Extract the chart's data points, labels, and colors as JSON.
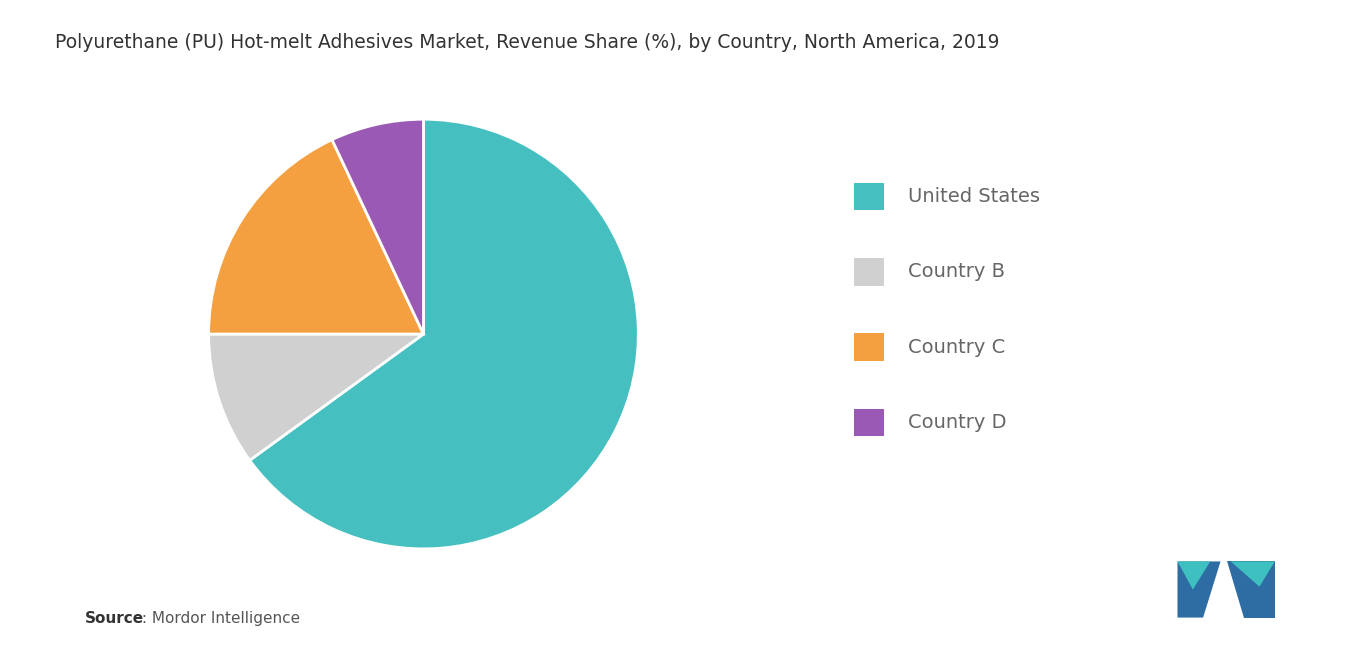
{
  "title": "Polyurethane (PU) Hot-melt Adhesives Market, Revenue Share (%), by Country, North America, 2019",
  "labels": [
    "United States",
    "Country B",
    "Country C",
    "Country D"
  ],
  "sizes": [
    65,
    10,
    18,
    7
  ],
  "colors": [
    "#45BFBF",
    "#d0d0d0",
    "#f5a040",
    "#9b59b6"
  ],
  "startangle": 90,
  "legend_labels": [
    "United States",
    "Country B",
    "Country C",
    "Country D"
  ],
  "source_bold": "Source",
  "source_rest": " : Mordor Intelligence",
  "background_color": "#ffffff",
  "title_fontsize": 13.5,
  "legend_fontsize": 14,
  "source_fontsize": 11,
  "logo_blue": "#2e6da4",
  "logo_teal": "#3fc0c0"
}
